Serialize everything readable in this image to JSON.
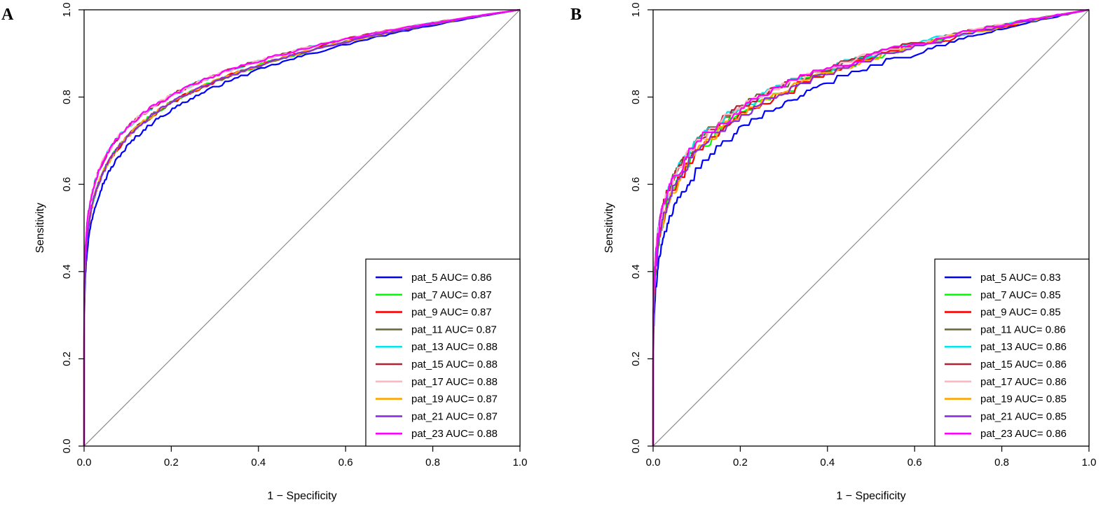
{
  "chart_data": [
    {
      "panel_label": "A",
      "type": "line",
      "xlabel": "1 − Specificity",
      "ylabel": "Sensitivity",
      "xlim": [
        0,
        1
      ],
      "ylim": [
        0,
        1
      ],
      "xticks": [
        "0.0",
        "0.2",
        "0.4",
        "0.6",
        "0.8",
        "1.0"
      ],
      "yticks": [
        "0.0",
        "0.2",
        "0.4",
        "0.6",
        "0.8",
        "1.0"
      ],
      "diagonal_reference": true,
      "legend_position": "bottom-right",
      "series": [
        {
          "name": "pat_5",
          "auc": "0.86",
          "legend": "pat_5 AUC= 0.86",
          "color": "#0000ff"
        },
        {
          "name": "pat_7",
          "auc": "0.87",
          "legend": "pat_7 AUC= 0.87",
          "color": "#00ff00"
        },
        {
          "name": "pat_9",
          "auc": "0.87",
          "legend": "pat_9 AUC= 0.87",
          "color": "#ff0000"
        },
        {
          "name": "pat_11",
          "auc": "0.87",
          "legend": "pat_11 AUC= 0.87",
          "color": "#6b6b3a"
        },
        {
          "name": "pat_13",
          "auc": "0.88",
          "legend": "pat_13 AUC= 0.88",
          "color": "#00e5ee"
        },
        {
          "name": "pat_15",
          "auc": "0.88",
          "legend": "pat_15 AUC= 0.88",
          "color": "#b22234"
        },
        {
          "name": "pat_17",
          "auc": "0.88",
          "legend": "pat_17 AUC= 0.88",
          "color": "#ffb6c1"
        },
        {
          "name": "pat_19",
          "auc": "0.87",
          "legend": "pat_19 AUC= 0.87",
          "color": "#ffa500"
        },
        {
          "name": "pat_21",
          "auc": "0.87",
          "legend": "pat_21 AUC= 0.87",
          "color": "#8a2be2"
        },
        {
          "name": "pat_23",
          "auc": "0.88",
          "legend": "pat_23 AUC= 0.88",
          "color": "#ff00ff"
        }
      ]
    },
    {
      "panel_label": "B",
      "type": "line",
      "xlabel": "1 − Specificity",
      "ylabel": "Sensitivity",
      "xlim": [
        0,
        1
      ],
      "ylim": [
        0,
        1
      ],
      "xticks": [
        "0.0",
        "0.2",
        "0.4",
        "0.6",
        "0.8",
        "1.0"
      ],
      "yticks": [
        "0.0",
        "0.2",
        "0.4",
        "0.6",
        "0.8",
        "1.0"
      ],
      "diagonal_reference": true,
      "legend_position": "bottom-right",
      "series": [
        {
          "name": "pat_5",
          "auc": "0.83",
          "legend": "pat_5 AUC= 0.83",
          "color": "#0000ff"
        },
        {
          "name": "pat_7",
          "auc": "0.85",
          "legend": "pat_7 AUC= 0.85",
          "color": "#00ff00"
        },
        {
          "name": "pat_9",
          "auc": "0.85",
          "legend": "pat_9 AUC= 0.85",
          "color": "#ff0000"
        },
        {
          "name": "pat_11",
          "auc": "0.86",
          "legend": "pat_11 AUC= 0.86",
          "color": "#6b6b3a"
        },
        {
          "name": "pat_13",
          "auc": "0.86",
          "legend": "pat_13 AUC= 0.86",
          "color": "#00e5ee"
        },
        {
          "name": "pat_15",
          "auc": "0.86",
          "legend": "pat_15 AUC= 0.86",
          "color": "#b22234"
        },
        {
          "name": "pat_17",
          "auc": "0.86",
          "legend": "pat_17 AUC= 0.86",
          "color": "#ffb6c1"
        },
        {
          "name": "pat_19",
          "auc": "0.85",
          "legend": "pat_19 AUC= 0.85",
          "color": "#ffa500"
        },
        {
          "name": "pat_21",
          "auc": "0.85",
          "legend": "pat_21 AUC= 0.85",
          "color": "#8a2be2"
        },
        {
          "name": "pat_23",
          "auc": "0.86",
          "legend": "pat_23 AUC= 0.86",
          "color": "#ff00ff"
        }
      ]
    }
  ]
}
